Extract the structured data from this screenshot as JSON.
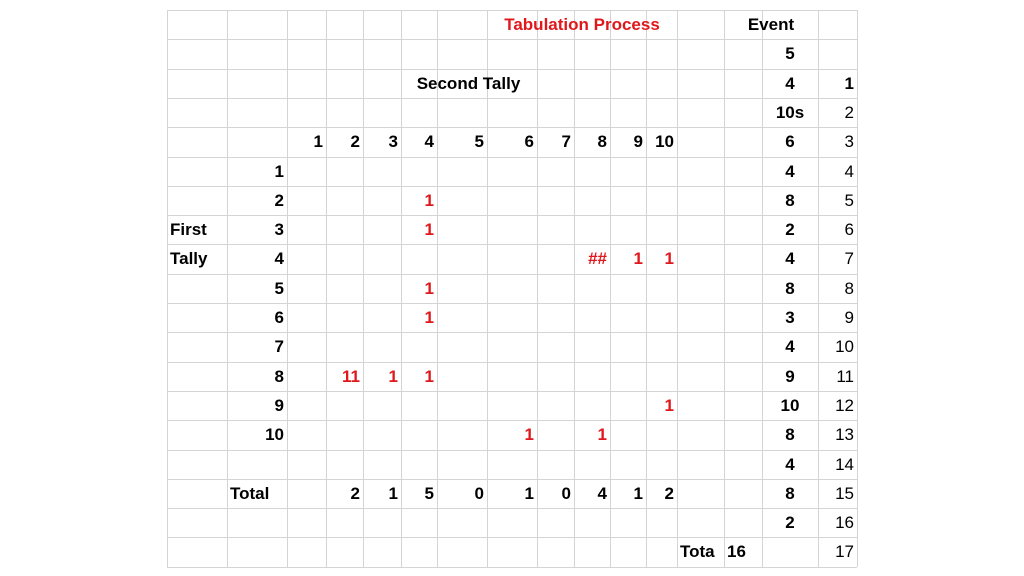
{
  "sheet": {
    "title": "Tabulation Process",
    "second_tally_label": "Second Tally",
    "first_label": "First",
    "tally_label": "Tally",
    "total_label": "Total",
    "tota_label": "Tota",
    "tota_value": "16",
    "event_header": "Event",
    "col_headers": [
      "1",
      "2",
      "3",
      "4",
      "5",
      "6",
      "7",
      "8",
      "9",
      "10"
    ],
    "row_headers": [
      "1",
      "2",
      "3",
      "4",
      "5",
      "6",
      "7",
      "8",
      "9",
      "10"
    ],
    "matrix": [
      [
        "",
        "",
        "",
        "",
        "",
        "",
        "",
        "",
        "",
        ""
      ],
      [
        "",
        "",
        "",
        "1",
        "",
        "",
        "",
        "",
        "",
        ""
      ],
      [
        "",
        "",
        "",
        "1",
        "",
        "",
        "",
        "",
        "",
        ""
      ],
      [
        "",
        "",
        "",
        "",
        "",
        "",
        "",
        "##",
        "1",
        "1"
      ],
      [
        "",
        "",
        "",
        "1",
        "",
        "",
        "",
        "",
        "",
        ""
      ],
      [
        "",
        "",
        "",
        "1",
        "",
        "",
        "",
        "",
        "",
        ""
      ],
      [
        "",
        "",
        "",
        "",
        "",
        "",
        "",
        "",
        "",
        ""
      ],
      [
        "",
        "11",
        "1",
        "1",
        "",
        "",
        "",
        "",
        "",
        ""
      ],
      [
        "",
        "",
        "",
        "",
        "",
        "",
        "",
        "",
        "",
        "1"
      ],
      [
        "",
        "",
        "",
        "",
        "",
        "1",
        "",
        "1",
        "",
        ""
      ]
    ],
    "totals": [
      "",
      "2",
      "1",
      "5",
      "0",
      "1",
      "0",
      "4",
      "1",
      "2"
    ],
    "events": [
      "5",
      "4",
      "10s",
      "6",
      "4",
      "8",
      "2",
      "4",
      "8",
      "3",
      "4",
      "9",
      "10",
      "8",
      "4",
      "8",
      "2",
      ""
    ],
    "event_index": [
      "",
      "1",
      "2",
      "3",
      "4",
      "5",
      "6",
      "7",
      "8",
      "9",
      "10",
      "11",
      "12",
      "13",
      "14",
      "15",
      "16",
      "17"
    ],
    "colors": {
      "accent_red": "#e0181c",
      "gridline": "#d4d4d4"
    }
  }
}
